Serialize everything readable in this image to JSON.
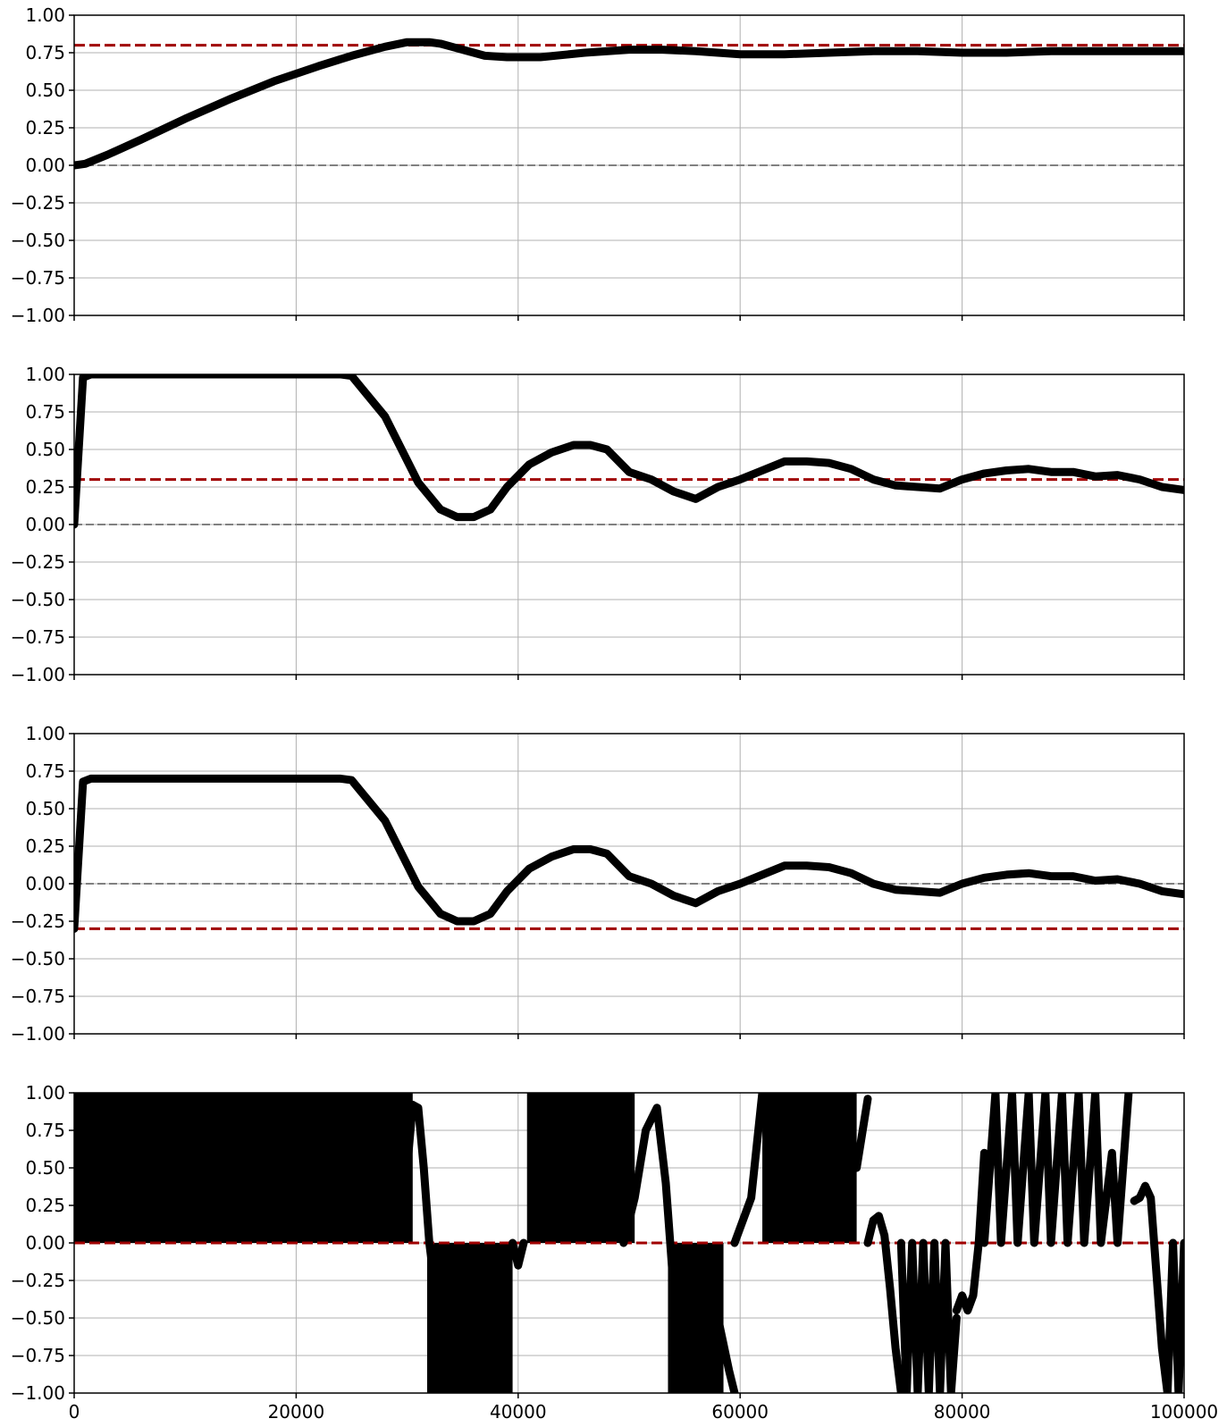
{
  "chart_data": [
    {
      "type": "line",
      "xlim": [
        0,
        100000
      ],
      "ylim": [
        -1,
        1
      ],
      "yticks": [
        1.0,
        0.75,
        0.5,
        0.25,
        0.0,
        -0.25,
        -0.5,
        -0.75,
        -1.0
      ],
      "ytick_labels": [
        "1.00",
        "0.75",
        "0.50",
        "0.25",
        "0.00",
        "−0.25",
        "−0.50",
        "−0.75",
        "−1.00"
      ],
      "xticks": [
        0,
        20000,
        40000,
        60000,
        80000,
        100000
      ],
      "xtick_labels": [],
      "grid": true,
      "reference_lines": [
        {
          "y": 0.8,
          "color": "#a00000",
          "style": "dashed"
        },
        {
          "y": 0.0,
          "color": "#808080",
          "style": "dashed"
        }
      ],
      "series": [
        {
          "color": "#000000",
          "x": [
            0,
            1000,
            3000,
            6000,
            10000,
            14000,
            18000,
            22000,
            25000,
            28000,
            30000,
            32000,
            33000,
            35000,
            37000,
            39000,
            42000,
            46000,
            50000,
            53000,
            56000,
            60000,
            64000,
            68000,
            72000,
            76000,
            80000,
            84000,
            88000,
            92000,
            96000,
            100000
          ],
          "y": [
            0.0,
            0.01,
            0.07,
            0.17,
            0.31,
            0.44,
            0.56,
            0.66,
            0.73,
            0.79,
            0.82,
            0.82,
            0.81,
            0.77,
            0.73,
            0.72,
            0.72,
            0.75,
            0.77,
            0.77,
            0.76,
            0.74,
            0.74,
            0.75,
            0.76,
            0.76,
            0.75,
            0.75,
            0.76,
            0.76,
            0.76,
            0.76
          ]
        }
      ]
    },
    {
      "type": "line",
      "xlim": [
        0,
        100000
      ],
      "ylim": [
        -1,
        1
      ],
      "yticks": [
        1.0,
        0.75,
        0.5,
        0.25,
        0.0,
        -0.25,
        -0.5,
        -0.75,
        -1.0
      ],
      "ytick_labels": [
        "1.00",
        "0.75",
        "0.50",
        "0.25",
        "0.00",
        "−0.25",
        "−0.50",
        "−0.75",
        "−1.00"
      ],
      "xticks": [
        0,
        20000,
        40000,
        60000,
        80000,
        100000
      ],
      "xtick_labels": [],
      "grid": true,
      "reference_lines": [
        {
          "y": 0.3,
          "color": "#a00000",
          "style": "dashed"
        },
        {
          "y": 0.0,
          "color": "#808080",
          "style": "dashed"
        }
      ],
      "series": [
        {
          "color": "#000000",
          "x": [
            0,
            800,
            1500,
            5000,
            10000,
            15000,
            20000,
            24000,
            25000,
            26000,
            28000,
            29500,
            31000,
            33000,
            34500,
            36000,
            37500,
            39000,
            41000,
            43000,
            45000,
            46500,
            48000,
            50000,
            52000,
            54000,
            56000,
            58000,
            60000,
            62000,
            64000,
            66000,
            68000,
            70000,
            72000,
            74000,
            76000,
            78000,
            80000,
            82000,
            84000,
            86000,
            88000,
            90000,
            92000,
            94000,
            96000,
            98000,
            100000
          ],
          "y": [
            0.0,
            0.98,
            1.0,
            1.0,
            1.0,
            1.0,
            1.0,
            1.0,
            0.99,
            0.9,
            0.72,
            0.5,
            0.28,
            0.1,
            0.05,
            0.05,
            0.1,
            0.25,
            0.4,
            0.48,
            0.53,
            0.53,
            0.5,
            0.35,
            0.3,
            0.22,
            0.17,
            0.25,
            0.3,
            0.36,
            0.42,
            0.42,
            0.41,
            0.37,
            0.3,
            0.26,
            0.25,
            0.24,
            0.3,
            0.34,
            0.36,
            0.37,
            0.35,
            0.35,
            0.32,
            0.33,
            0.3,
            0.25,
            0.23
          ]
        }
      ]
    },
    {
      "type": "line",
      "xlim": [
        0,
        100000
      ],
      "ylim": [
        -1,
        1
      ],
      "yticks": [
        1.0,
        0.75,
        0.5,
        0.25,
        0.0,
        -0.25,
        -0.5,
        -0.75,
        -1.0
      ],
      "ytick_labels": [
        "1.00",
        "0.75",
        "0.50",
        "0.25",
        "0.00",
        "−0.25",
        "−0.50",
        "−0.75",
        "−1.00"
      ],
      "xticks": [
        0,
        20000,
        40000,
        60000,
        80000,
        100000
      ],
      "xtick_labels": [],
      "grid": true,
      "reference_lines": [
        {
          "y": -0.3,
          "color": "#a00000",
          "style": "dashed"
        },
        {
          "y": 0.0,
          "color": "#808080",
          "style": "dashed"
        }
      ],
      "series": [
        {
          "color": "#000000",
          "x": [
            0,
            800,
            1500,
            5000,
            10000,
            15000,
            20000,
            24000,
            25000,
            26000,
            28000,
            29500,
            31000,
            33000,
            34500,
            36000,
            37500,
            39000,
            41000,
            43000,
            45000,
            46500,
            48000,
            50000,
            52000,
            54000,
            56000,
            58000,
            60000,
            62000,
            64000,
            66000,
            68000,
            70000,
            72000,
            74000,
            76000,
            78000,
            80000,
            82000,
            84000,
            86000,
            88000,
            90000,
            92000,
            94000,
            96000,
            98000,
            100000
          ],
          "y": [
            -0.3,
            0.68,
            0.7,
            0.7,
            0.7,
            0.7,
            0.7,
            0.7,
            0.69,
            0.6,
            0.42,
            0.2,
            -0.02,
            -0.2,
            -0.25,
            -0.25,
            -0.2,
            -0.05,
            0.1,
            0.18,
            0.23,
            0.23,
            0.2,
            0.05,
            0.0,
            -0.08,
            -0.13,
            -0.05,
            0.0,
            0.06,
            0.12,
            0.12,
            0.11,
            0.07,
            0.0,
            -0.04,
            -0.05,
            -0.06,
            0.0,
            0.04,
            0.06,
            0.07,
            0.05,
            0.05,
            0.02,
            0.03,
            0.0,
            -0.05,
            -0.07
          ]
        }
      ]
    },
    {
      "type": "line",
      "xlim": [
        0,
        100000
      ],
      "ylim": [
        -1,
        1
      ],
      "yticks": [
        1.0,
        0.75,
        0.5,
        0.25,
        0.0,
        -0.25,
        -0.5,
        -0.75,
        -1.0
      ],
      "ytick_labels": [
        "1.00",
        "0.75",
        "0.50",
        "0.25",
        "0.00",
        "−0.25",
        "−0.50",
        "−0.75",
        "−1.00"
      ],
      "xticks": [
        0,
        20000,
        40000,
        60000,
        80000,
        100000
      ],
      "xtick_labels": [
        "0",
        "20000",
        "40000",
        "60000",
        "80000",
        "100000"
      ],
      "grid": true,
      "reference_lines": [
        {
          "y": 0.0,
          "color": "#a00000",
          "style": "dashed"
        }
      ],
      "filled_bands": [
        {
          "x0": 0,
          "x1": 30500,
          "y0": 0.0,
          "y1": 1.0
        },
        {
          "x0": 31800,
          "x1": 39500,
          "y0": -1.0,
          "y1": 0.0
        },
        {
          "x0": 40800,
          "x1": 50500,
          "y0": 0.0,
          "y1": 1.0
        },
        {
          "x0": 53500,
          "x1": 58500,
          "y0": -1.0,
          "y1": 0.0
        },
        {
          "x0": 62000,
          "x1": 70500,
          "y0": 0.0,
          "y1": 1.0
        }
      ],
      "series": [
        {
          "color": "#000000",
          "x": [
            30000,
            30500,
            31000,
            31500,
            32000,
            32500
          ],
          "y": [
            0.5,
            0.92,
            0.9,
            0.5,
            0.0,
            -0.3
          ]
        },
        {
          "color": "#000000",
          "x": [
            39500,
            40000,
            40500
          ],
          "y": [
            0.0,
            -0.15,
            0.0
          ]
        },
        {
          "color": "#000000",
          "x": [
            49500,
            50500,
            51500,
            52500,
            53300,
            54000
          ],
          "y": [
            0.0,
            0.3,
            0.75,
            0.9,
            0.4,
            -0.3
          ]
        },
        {
          "color": "#000000",
          "x": [
            58000,
            59000,
            59500
          ],
          "y": [
            -0.5,
            -0.85,
            -1.0
          ]
        },
        {
          "color": "#000000",
          "x": [
            59500,
            61000,
            62000
          ],
          "y": [
            0.0,
            0.3,
            1.0
          ]
        },
        {
          "color": "#000000",
          "x": [
            70500,
            71500
          ],
          "y": [
            0.5,
            0.96
          ]
        },
        {
          "color": "#000000",
          "x": [
            71500,
            72000,
            72500,
            73000,
            73500,
            74000,
            74500
          ],
          "y": [
            0.0,
            0.15,
            0.18,
            0.05,
            -0.3,
            -0.7,
            -1.0
          ]
        },
        {
          "color": "#000000",
          "x": [
            74500,
            75000,
            75500,
            76000,
            76500,
            77000,
            77500,
            78000,
            78500,
            79000,
            79500
          ],
          "y": [
            0.0,
            -1.0,
            0.0,
            -1.0,
            0.0,
            -1.0,
            0.0,
            -1.0,
            0.0,
            -1.0,
            -0.5
          ]
        },
        {
          "color": "#000000",
          "x": [
            79500,
            80000,
            80500,
            81000,
            81500,
            82000
          ],
          "y": [
            -0.45,
            -0.35,
            -0.45,
            -0.35,
            0.0,
            0.6
          ]
        },
        {
          "color": "#000000",
          "x": [
            82000,
            83000,
            83500,
            84500,
            85000,
            86000,
            86500,
            87500,
            88000,
            89000,
            89500,
            90500,
            91000,
            92000,
            92500,
            93500,
            94000,
            95000
          ],
          "y": [
            0.0,
            1.0,
            0.0,
            1.0,
            0.0,
            1.0,
            0.0,
            1.0,
            0.0,
            1.0,
            0.0,
            1.0,
            0.0,
            1.0,
            0.0,
            0.6,
            0.0,
            1.0
          ]
        },
        {
          "color": "#000000",
          "x": [
            95500,
            96000,
            96500,
            97000,
            97500,
            98000,
            98500,
            99000
          ],
          "y": [
            0.28,
            0.3,
            0.38,
            0.3,
            -0.2,
            -0.7,
            -1.0,
            0.0
          ]
        },
        {
          "color": "#000000",
          "x": [
            99000,
            99500,
            100000
          ],
          "y": [
            0.0,
            -1.0,
            0.0
          ]
        }
      ]
    }
  ]
}
